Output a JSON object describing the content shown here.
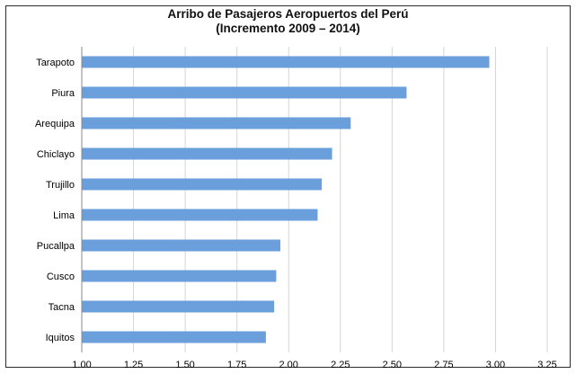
{
  "chart_data": {
    "type": "bar",
    "orientation": "horizontal",
    "title": "Arribo de Pasajeros  Aeropuertos del Perú",
    "subtitle": "(Incremento 2009 – 2014)",
    "categories": [
      "Tarapoto",
      "Piura",
      "Arequipa",
      "Chiclayo",
      "Trujillo",
      "Lima",
      "Pucallpa",
      "Cusco",
      "Tacna",
      "Iquitos"
    ],
    "values": [
      2.97,
      2.57,
      2.3,
      2.21,
      2.16,
      2.14,
      1.96,
      1.94,
      1.93,
      1.89
    ],
    "xlim": [
      1.0,
      3.25
    ],
    "xticks": [
      "1.00",
      "1.25",
      "1.50",
      "1.75",
      "2.00",
      "2.25",
      "2.50",
      "2.75",
      "3.00",
      "3.25"
    ],
    "xtick_values": [
      1.0,
      1.25,
      1.5,
      1.75,
      2.0,
      2.25,
      2.5,
      2.75,
      3.0,
      3.25
    ],
    "grid": true,
    "bar_color": "#6a9fdc",
    "grid_color": "#d4d4d4"
  }
}
